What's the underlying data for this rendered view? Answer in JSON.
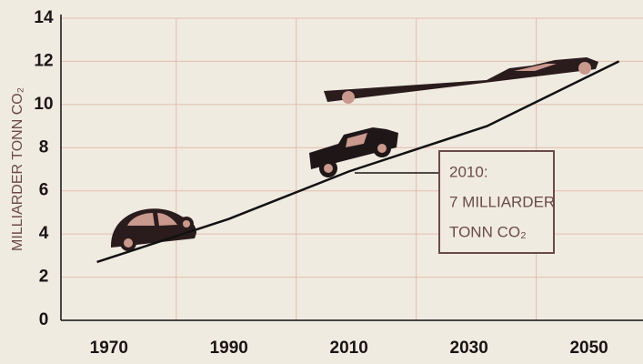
{
  "chart_data": {
    "type": "line",
    "y_label": "MILLIARDER TONN CO₂",
    "x": [
      1968,
      1990,
      2010,
      2033,
      2055
    ],
    "series": [
      {
        "color": "#111111",
        "values": [
          2.7,
          4.7,
          6.9,
          9.0,
          12.0
        ]
      }
    ],
    "xlim": [
      1962,
      2059
    ],
    "xticks": [
      1970,
      1990,
      2010,
      2030,
      2050
    ],
    "ylim": [
      0,
      14
    ],
    "yticks": [
      0,
      2,
      4,
      6,
      8,
      10,
      12,
      14
    ],
    "grid": true,
    "annotation": {
      "x": 2010,
      "y": 6.9,
      "lines": [
        "2010:",
        "7 MILLIARDER",
        "TONN CO₂"
      ]
    }
  }
}
